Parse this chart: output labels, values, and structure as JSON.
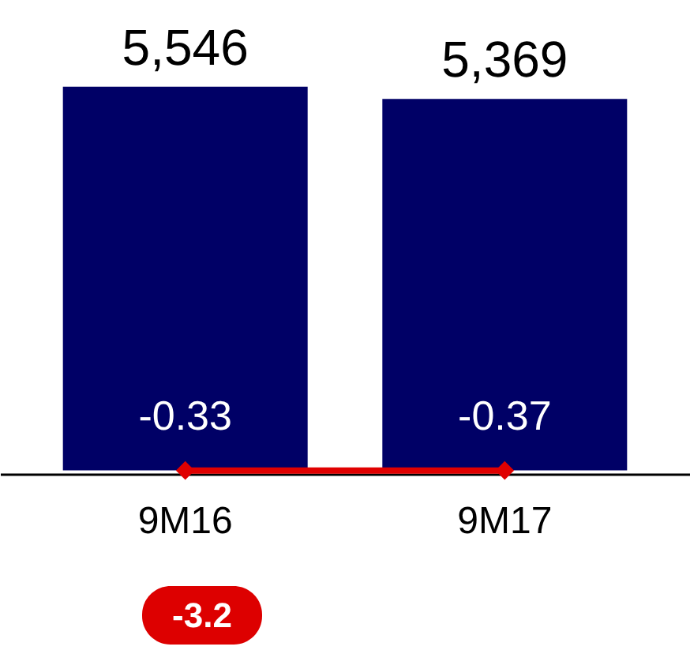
{
  "chart_data": {
    "type": "bar",
    "categories": [
      "9M16",
      "9M17"
    ],
    "series": [
      {
        "color": "#000066",
        "values": [
          5546,
          5369
        ],
        "value_labels": [
          "5,546",
          "5,369"
        ]
      },
      {
        "type": "line",
        "color": "#e00000",
        "values": [
          -0.33,
          -0.37
        ],
        "value_labels": [
          "-0.33",
          "-0.37"
        ]
      }
    ],
    "ylim": [
      -50,
      6800
    ],
    "tick_labels": "x",
    "marker": "diamond",
    "annotations": [
      "-3.2"
    ]
  }
}
